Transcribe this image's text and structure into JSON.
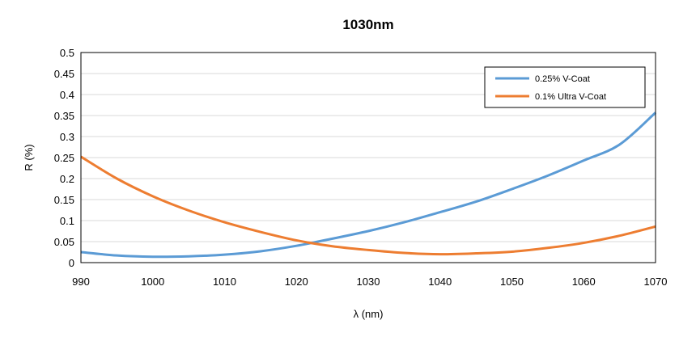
{
  "chart_data": {
    "type": "line",
    "title": "1030nm",
    "xlabel": "λ (nm)",
    "ylabel": "R (%)",
    "xlim": [
      990,
      1070
    ],
    "ylim": [
      0,
      0.5
    ],
    "x_ticks": [
      990,
      1000,
      1010,
      1020,
      1030,
      1040,
      1050,
      1060,
      1070
    ],
    "y_ticks": [
      "0",
      "0.05",
      "0.1",
      "0.15",
      "0.2",
      "0.25",
      "0.3",
      "0.35",
      "0.4",
      "0.45",
      "0.5"
    ],
    "grid": true,
    "legend_position": "top-right",
    "series": [
      {
        "name": "0.25% V-Coat",
        "color": "#5B9BD5",
        "x": [
          990,
          995,
          1000,
          1005,
          1010,
          1015,
          1020,
          1025,
          1030,
          1035,
          1040,
          1045,
          1050,
          1055,
          1060,
          1065,
          1070
        ],
        "y": [
          0.025,
          0.017,
          0.014,
          0.015,
          0.019,
          0.027,
          0.04,
          0.057,
          0.075,
          0.096,
          0.12,
          0.145,
          0.175,
          0.207,
          0.243,
          0.281,
          0.357
        ]
      },
      {
        "name": "0.1% Ultra V-Coat",
        "color": "#ED7D31",
        "x": [
          990,
          995,
          1000,
          1005,
          1010,
          1015,
          1020,
          1025,
          1030,
          1035,
          1040,
          1045,
          1050,
          1055,
          1060,
          1065,
          1070
        ],
        "y": [
          0.252,
          0.2,
          0.158,
          0.124,
          0.096,
          0.073,
          0.053,
          0.039,
          0.03,
          0.023,
          0.02,
          0.022,
          0.026,
          0.035,
          0.047,
          0.064,
          0.086
        ]
      }
    ]
  }
}
